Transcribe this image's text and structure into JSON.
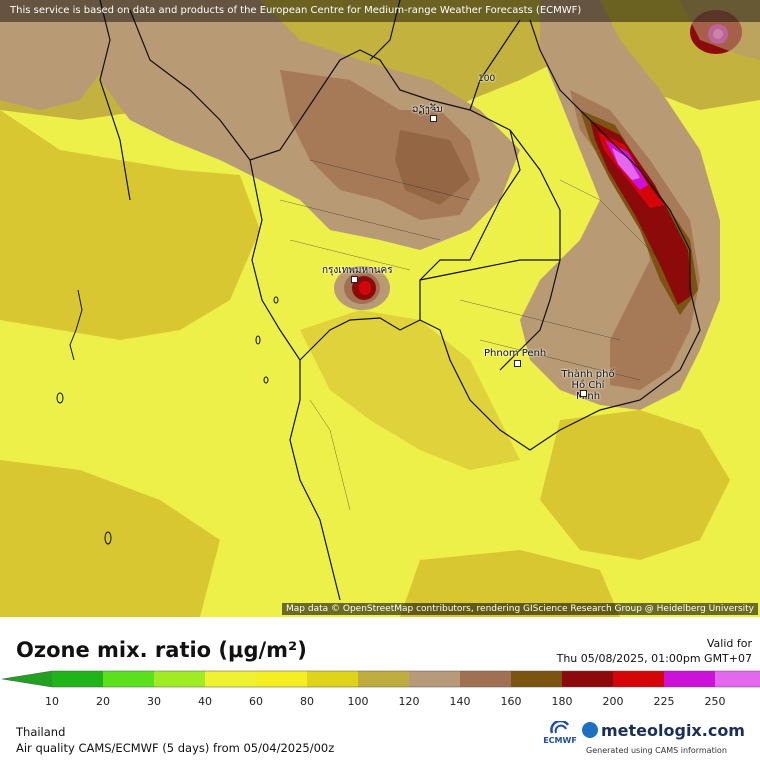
{
  "banner": "This service is based on data and products of the European Centre for Medium-range Weather Forecasts (ECMWF)",
  "attribution": "Map data © OpenStreetMap contributors, rendering GIScience Research Group @ Heidelberg University",
  "cities": [
    {
      "name": "ວຽງຈັນ"
    },
    {
      "name": "กรุงเทพมหานคร"
    },
    {
      "name": "Phnom Penh"
    },
    {
      "name": "Thành phố Hồ Chí Minh"
    }
  ],
  "contour_label": "100",
  "legend": {
    "title": "Ozone mix. ratio (μg/m²)",
    "valid_for_label": "Valid for",
    "valid_time": "Thu 05/08/2025, 01:00pm GMT+07",
    "scale": [
      {
        "label": "10",
        "color": "#1fb41a"
      },
      {
        "label": "20",
        "color": "#5ae01c"
      },
      {
        "label": "30",
        "color": "#a0ec24"
      },
      {
        "label": "40",
        "color": "#eef230"
      },
      {
        "label": "60",
        "color": "#f4ee22"
      },
      {
        "label": "80",
        "color": "#e0d41a"
      },
      {
        "label": "100",
        "color": "#bfad3f"
      },
      {
        "label": "120",
        "color": "#b69a7a"
      },
      {
        "label": "140",
        "color": "#a07052"
      },
      {
        "label": "160",
        "color": "#7a5410"
      },
      {
        "label": "180",
        "color": "#8c0a0a"
      },
      {
        "label": "200",
        "color": "#d4060a"
      },
      {
        "label": "225",
        "color": "#cc12d8"
      },
      {
        "label": "250",
        "color": "#e468ee"
      }
    ],
    "arrow_left_color": "#22a020",
    "arrow_right_color": "#f0a4f4"
  },
  "footer": {
    "region": "Thailand",
    "model_line": "Air quality CAMS/ECMWF (5 days)  from  05/04/2025/00z"
  },
  "logos": {
    "ecmwf": "ECMWF",
    "brand": "meteologix.com",
    "generated": "Generated using CAMS information"
  }
}
